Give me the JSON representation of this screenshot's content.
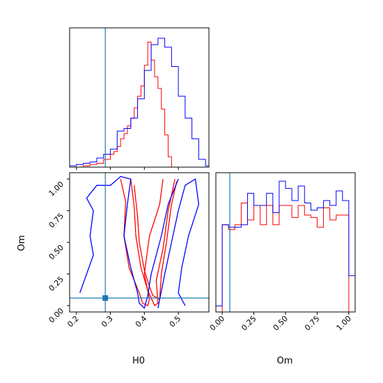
{
  "colors": {
    "series_a": "#ff0000",
    "series_b": "#0000ff",
    "truth": "#1f77b4",
    "frame": "#000000"
  },
  "chart_data": [
    {
      "type": "histogram",
      "panel": "H0 marginal",
      "x_range": [
        0.18,
        0.59
      ],
      "y_range": [
        0,
        1.08
      ],
      "truth_x": 0.285,
      "ticks": [
        0.2,
        0.3,
        0.4,
        0.5
      ],
      "series": [
        {
          "color": "#ff0000",
          "bin_edges": [
            0.18,
            0.2,
            0.22,
            0.24,
            0.26,
            0.28,
            0.3,
            0.31,
            0.32,
            0.33,
            0.34,
            0.35,
            0.36,
            0.37,
            0.38,
            0.39,
            0.4,
            0.41,
            0.42,
            0.43,
            0.44,
            0.45,
            0.46,
            0.47,
            0.48,
            0.49,
            0.59
          ],
          "values": [
            0,
            0,
            0.01,
            0.02,
            0.03,
            0.06,
            0.1,
            0.12,
            0.16,
            0.22,
            0.26,
            0.32,
            0.38,
            0.46,
            0.55,
            0.63,
            0.79,
            0.97,
            0.83,
            0.7,
            0.61,
            0.45,
            0.25,
            0.08,
            0.0,
            0.0
          ]
        },
        {
          "color": "#0000ff",
          "bin_edges": [
            0.18,
            0.2,
            0.22,
            0.24,
            0.26,
            0.28,
            0.3,
            0.32,
            0.34,
            0.36,
            0.38,
            0.4,
            0.42,
            0.44,
            0.46,
            0.48,
            0.5,
            0.52,
            0.54,
            0.56,
            0.58,
            0.59
          ],
          "values": [
            0.01,
            0.02,
            0.03,
            0.04,
            0.07,
            0.1,
            0.14,
            0.28,
            0.3,
            0.38,
            0.53,
            0.75,
            0.95,
            1.0,
            0.93,
            0.78,
            0.55,
            0.38,
            0.22,
            0.06,
            0.01
          ]
        }
      ]
    },
    {
      "type": "contour",
      "panel": "H0 vs Om",
      "xlabel": "H0",
      "ylabel": "Om",
      "x_range": [
        0.18,
        0.59
      ],
      "y_range": [
        -0.05,
        1.05
      ],
      "x_ticks": [
        "0.2",
        "0.3",
        "0.4",
        "0.5"
      ],
      "y_ticks": [
        "0.00",
        "0.25",
        "0.50",
        "0.75",
        "1.00"
      ],
      "truth": [
        0.285,
        0.06
      ],
      "series": [
        {
          "color": "#ff0000",
          "levels": [
            [
              [
                0.33,
                1.0
              ],
              [
                0.345,
                0.82
              ],
              [
                0.34,
                0.55
              ],
              [
                0.355,
                0.3
              ],
              [
                0.385,
                0.1
              ],
              [
                0.395,
                0.02
              ],
              [
                0.41,
                0.0
              ],
              [
                0.415,
                0.05
              ],
              [
                0.4,
                0.25
              ],
              [
                0.415,
                0.55
              ],
              [
                0.445,
                0.8
              ],
              [
                0.455,
                1.0
              ]
            ],
            [
              [
                0.36,
                1.0
              ],
              [
                0.37,
                0.78
              ],
              [
                0.375,
                0.55
              ],
              [
                0.39,
                0.3
              ],
              [
                0.41,
                0.12
              ],
              [
                0.43,
                0.0
              ],
              [
                0.44,
                0.02
              ],
              [
                0.435,
                0.2
              ],
              [
                0.455,
                0.45
              ],
              [
                0.47,
                0.75
              ],
              [
                0.49,
                1.0
              ]
            ],
            [
              [
                0.37,
                0.95
              ],
              [
                0.38,
                0.7
              ],
              [
                0.385,
                0.5
              ],
              [
                0.4,
                0.28
              ],
              [
                0.415,
                0.15
              ],
              [
                0.425,
                0.08
              ],
              [
                0.445,
                0.05
              ],
              [
                0.45,
                0.25
              ],
              [
                0.465,
                0.5
              ],
              [
                0.48,
                0.8
              ],
              [
                0.495,
                0.98
              ]
            ]
          ]
        },
        {
          "color": "#0000ff",
          "levels": [
            [
              [
                0.21,
                0.1
              ],
              [
                0.23,
                0.25
              ],
              [
                0.25,
                0.4
              ],
              [
                0.24,
                0.55
              ],
              [
                0.25,
                0.75
              ],
              [
                0.23,
                0.85
              ],
              [
                0.26,
                0.95
              ],
              [
                0.3,
                0.95
              ],
              [
                0.33,
                1.02
              ],
              [
                0.36,
                1.0
              ],
              [
                0.35,
                0.8
              ],
              [
                0.34,
                0.55
              ],
              [
                0.36,
                0.3
              ],
              [
                0.38,
                0.1
              ],
              [
                0.385,
                0.02
              ],
              [
                0.4,
                -0.02
              ],
              [
                0.41,
                0.08
              ],
              [
                0.42,
                0.25
              ],
              [
                0.45,
                0.55
              ],
              [
                0.47,
                0.8
              ],
              [
                0.5,
                1.0
              ]
            ],
            [
              [
                0.44,
                -0.02
              ],
              [
                0.46,
                0.25
              ],
              [
                0.48,
                0.5
              ],
              [
                0.5,
                0.75
              ],
              [
                0.52,
                0.95
              ],
              [
                0.55,
                1.0
              ],
              [
                0.56,
                0.8
              ],
              [
                0.53,
                0.55
              ],
              [
                0.51,
                0.3
              ],
              [
                0.5,
                0.1
              ],
              [
                0.52,
                0.0
              ]
            ]
          ]
        }
      ]
    },
    {
      "type": "histogram",
      "panel": "Om marginal",
      "xlabel": "Om",
      "x_range": [
        -0.05,
        1.05
      ],
      "y_range": [
        0,
        1.15
      ],
      "truth_x": 0.06,
      "ticks": [
        "0.00",
        "0.25",
        "0.50",
        "0.75",
        "1.00"
      ],
      "series": [
        {
          "color": "#ff0000",
          "bin_edges": [
            -0.05,
            0.0,
            0.05,
            0.1,
            0.15,
            0.2,
            0.25,
            0.3,
            0.35,
            0.4,
            0.45,
            0.5,
            0.55,
            0.6,
            0.65,
            0.7,
            0.75,
            0.8,
            0.85,
            0.9,
            0.95,
            1.0,
            1.05
          ],
          "values": [
            0,
            0.72,
            0.68,
            0.72,
            0.9,
            0.76,
            0.88,
            0.72,
            0.88,
            0.72,
            0.88,
            0.88,
            0.78,
            0.88,
            0.8,
            0.78,
            0.7,
            0.86,
            0.76,
            0.8,
            0.8,
            0
          ]
        },
        {
          "color": "#0000ff",
          "bin_edges": [
            -0.05,
            0.0,
            0.05,
            0.1,
            0.15,
            0.2,
            0.25,
            0.3,
            0.35,
            0.4,
            0.45,
            0.5,
            0.55,
            0.6,
            0.65,
            0.7,
            0.75,
            0.8,
            0.85,
            0.9,
            0.95,
            1.0,
            1.05
          ],
          "values": [
            0.05,
            0.72,
            0.7,
            0.7,
            0.72,
            0.98,
            0.88,
            0.88,
            0.98,
            0.82,
            1.08,
            1.02,
            0.92,
            1.04,
            0.9,
            0.84,
            0.86,
            0.92,
            0.88,
            1.0,
            0.92,
            0.3
          ]
        }
      ]
    }
  ]
}
